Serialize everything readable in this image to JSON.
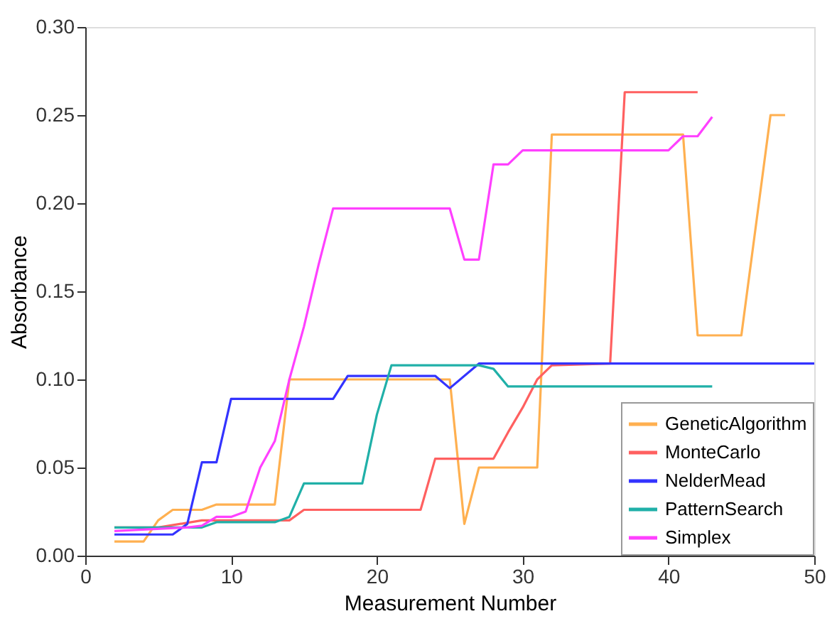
{
  "chart_data": {
    "type": "line",
    "xlabel": "Measurement Number",
    "ylabel": "Absorbance",
    "xlim": [
      0,
      50
    ],
    "xticks": [
      0,
      10,
      20,
      30,
      40,
      50
    ],
    "ylim": [
      0,
      0.3
    ],
    "yticks": [
      {
        "value": 0,
        "label": "0.00"
      },
      {
        "value": 0.05,
        "label": "0.05"
      },
      {
        "value": 0.1,
        "label": "0.10"
      },
      {
        "value": 0.15,
        "label": "0.15"
      },
      {
        "value": 0.2,
        "label": "0.20"
      },
      {
        "value": 0.25,
        "label": "0.25"
      },
      {
        "value": 0.3,
        "label": "0.30"
      }
    ],
    "grid": false,
    "legend": "bottom right",
    "marker": "none",
    "line_style": "solid",
    "series": [
      {
        "name": "GeneticAlgorithm",
        "color": "#ffb050",
        "x": [
          2,
          4,
          5,
          6,
          8,
          9,
          13,
          14,
          25,
          26,
          27,
          31,
          32,
          41,
          42,
          45,
          47,
          48
        ],
        "values": [
          0.008,
          0.008,
          0.02,
          0.026,
          0.026,
          0.029,
          0.029,
          0.1,
          0.1,
          0.018,
          0.05,
          0.05,
          0.239,
          0.239,
          0.125,
          0.125,
          0.25,
          0.25
        ]
      },
      {
        "name": "MonteCarlo",
        "color": "#ff6060",
        "x": [
          2,
          5,
          8,
          14,
          15,
          23,
          24,
          28,
          29,
          30,
          31,
          32,
          36,
          37,
          42
        ],
        "values": [
          0.016,
          0.016,
          0.02,
          0.02,
          0.026,
          0.026,
          0.055,
          0.055,
          0.07,
          0.084,
          0.1,
          0.108,
          0.109,
          0.263,
          0.263
        ]
      },
      {
        "name": "NelderMead",
        "color": "#3333ff",
        "x": [
          2,
          6,
          7,
          8,
          9,
          10,
          17,
          18,
          24,
          25,
          27,
          50
        ],
        "values": [
          0.012,
          0.012,
          0.018,
          0.053,
          0.053,
          0.089,
          0.089,
          0.102,
          0.102,
          0.095,
          0.109,
          0.109
        ]
      },
      {
        "name": "PatternSearch",
        "color": "#20b0a8",
        "x": [
          2,
          8,
          9,
          13,
          14,
          15,
          19,
          20,
          21,
          27,
          28,
          29,
          43
        ],
        "values": [
          0.016,
          0.016,
          0.019,
          0.019,
          0.022,
          0.041,
          0.041,
          0.08,
          0.108,
          0.108,
          0.106,
          0.096,
          0.096
        ]
      },
      {
        "name": "Simplex",
        "color": "#ff40ff",
        "x": [
          2,
          7,
          8,
          9,
          10,
          11,
          12,
          13,
          14,
          15,
          16,
          17,
          25,
          26,
          27,
          28,
          29,
          30,
          40,
          41,
          42,
          43
        ],
        "values": [
          0.014,
          0.016,
          0.017,
          0.022,
          0.022,
          0.025,
          0.05,
          0.065,
          0.1,
          0.13,
          0.165,
          0.197,
          0.197,
          0.168,
          0.168,
          0.222,
          0.222,
          0.23,
          0.23,
          0.238,
          0.238,
          0.249
        ]
      }
    ]
  }
}
